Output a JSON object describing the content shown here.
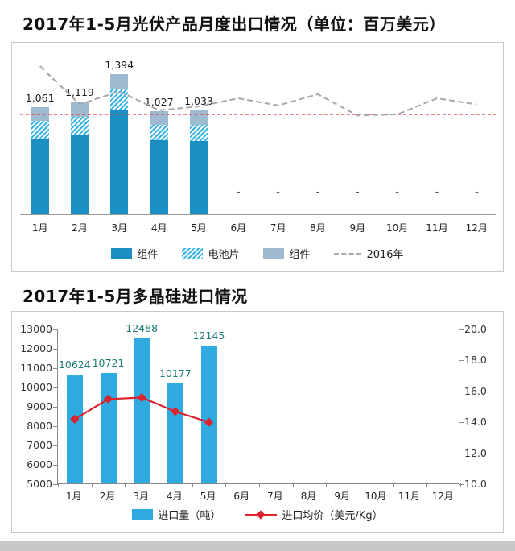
{
  "page": {
    "background": "#ffffff",
    "footer_strip_color": "#c8c8c8"
  },
  "colors": {
    "bar_dark": "#1b8ec4",
    "bar_hatch_stripe": "#35b4e3",
    "bar_light": "#9fbbd1",
    "line2016": "#a8a8a8",
    "refline": "#e03a3a",
    "import_bar": "#2fabe1",
    "price_line": "#d9232d",
    "value_label_teal": "#1b7c74"
  },
  "chart_data": [
    {
      "type": "bar",
      "title": "2017年1-5月光伏产品月度出口情况（单位：百万美元）",
      "categories": [
        "1月",
        "2月",
        "3月",
        "4月",
        "5月",
        "6月",
        "7月",
        "8月",
        "9月",
        "10月",
        "11月",
        "12月"
      ],
      "series": [
        {
          "name": "组件",
          "role": "bar-stack",
          "values": [
            752,
            790,
            1040,
            735,
            730,
            null,
            null,
            null,
            null,
            null,
            null,
            null
          ]
        },
        {
          "name": "电池片",
          "role": "bar-stack",
          "values": [
            174,
            175,
            205,
            150,
            155,
            null,
            null,
            null,
            null,
            null,
            null,
            null
          ]
        },
        {
          "name": "组件",
          "role": "bar-stack",
          "values": [
            135,
            154,
            149,
            142,
            148,
            null,
            null,
            null,
            null,
            null,
            null,
            null
          ]
        },
        {
          "name": "2016年",
          "role": "line",
          "values": [
            1480,
            1100,
            1230,
            1040,
            1080,
            1160,
            1090,
            1200,
            990,
            1000,
            1160,
            1100
          ]
        }
      ],
      "totals": [
        1061,
        1119,
        1394,
        1027,
        1033,
        null,
        null,
        null,
        null,
        null,
        null,
        null
      ],
      "total_labels": [
        "1,061",
        "1,119",
        "1,394",
        "1,027",
        "1,033",
        "-",
        "-",
        "-",
        "-",
        "-",
        "-",
        "-"
      ],
      "reference_line": 1000,
      "ylim": [
        0,
        1600
      ],
      "grid": false,
      "legend": [
        "组件",
        "电池片",
        "组件",
        "2016年"
      ],
      "legend_position": "bottom"
    },
    {
      "type": "bar+line",
      "title": "2017年1-5月多晶硅进口情况",
      "categories": [
        "1月",
        "2月",
        "3月",
        "4月",
        "5月",
        "6月",
        "7月",
        "8月",
        "9月",
        "10月",
        "11月",
        "12月"
      ],
      "bars": {
        "name": "进口量（吨）",
        "values": [
          10624,
          10721,
          12488,
          10177,
          12145
        ],
        "labels": [
          "10624",
          "10721",
          "12488",
          "10177",
          "12145"
        ]
      },
      "line": {
        "name": "进口均价（美元/Kg）",
        "values": [
          14.2,
          15.5,
          15.6,
          14.7,
          14.0
        ]
      },
      "left_axis": {
        "min": 5000,
        "max": 13000,
        "step": 1000,
        "tick_labels": [
          "13000",
          "12000",
          "11000",
          "10000",
          "9000",
          "8000",
          "7000",
          "6000",
          "5000"
        ]
      },
      "right_axis": {
        "min": 10,
        "max": 20,
        "step": 2,
        "tick_labels": [
          "20.0",
          "18.0",
          "16.0",
          "14.0",
          "12.0",
          "10.0"
        ]
      },
      "grid": false,
      "legend": [
        "进口量（吨）",
        "进口均价（美元/Kg）"
      ],
      "legend_position": "bottom"
    }
  ]
}
